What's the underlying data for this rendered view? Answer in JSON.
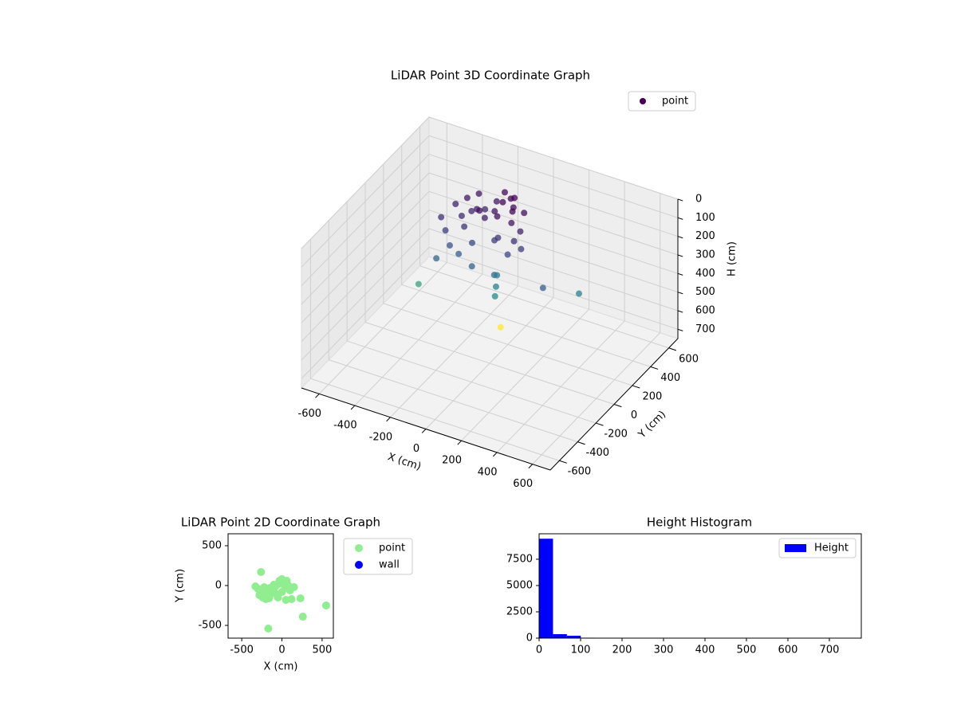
{
  "chart_data": [
    {
      "type": "scatter3d",
      "title": "LiDAR Point 3D Coordinate Graph",
      "xlabel": "X (cm)",
      "ylabel": "Y (cm)",
      "zlabel": "H (cm)",
      "xlim": [
        -700,
        700
      ],
      "ylim": [
        -700,
        700
      ],
      "zlim": [
        750,
        0
      ],
      "xticks": [
        -600,
        -400,
        -200,
        0,
        200,
        400,
        600
      ],
      "yticks": [
        -600,
        -400,
        -200,
        0,
        200,
        400,
        600
      ],
      "zticks": [
        0,
        100,
        200,
        300,
        400,
        500,
        600,
        700
      ],
      "colormap": "viridis",
      "grid": true,
      "legend": "upper right",
      "series": [
        {
          "name": "point",
          "color": "#440154",
          "x": [
            -350,
            -320,
            -300,
            -280,
            -260,
            -240,
            -220,
            -200,
            -180,
            -160,
            -140,
            -120,
            -100,
            -80,
            -60,
            -40,
            -20,
            0,
            20,
            40,
            60,
            -250,
            -150,
            -50,
            50,
            -300,
            -200,
            -100,
            0,
            100,
            -230,
            -130,
            -30,
            70,
            -10,
            10,
            30,
            -60,
            -400,
            400,
            -95,
            300
          ],
          "y": [
            150,
            250,
            100,
            300,
            200,
            350,
            150,
            250,
            300,
            200,
            350,
            400,
            250,
            300,
            200,
            350,
            300,
            250,
            200,
            300,
            150,
            50,
            100,
            150,
            100,
            0,
            50,
            0,
            50,
            150,
            250,
            200,
            150,
            200,
            100,
            50,
            0,
            350,
            0,
            200,
            305,
            0
          ],
          "z": [
            150,
            120,
            180,
            100,
            140,
            90,
            160,
            110,
            130,
            80,
            100,
            70,
            90,
            60,
            80,
            50,
            70,
            60,
            90,
            80,
            150,
            220,
            200,
            180,
            200,
            280,
            250,
            260,
            300,
            180,
            130,
            110,
            160,
            120,
            330,
            360,
            380,
            60,
            450,
            350,
            740,
            250
          ]
        }
      ]
    },
    {
      "type": "scatter",
      "title": "LiDAR Point 2D Coordinate Graph",
      "xlabel": "X (cm)",
      "ylabel": "Y (cm)",
      "xlim": [
        -670,
        640
      ],
      "ylim": [
        -660,
        650
      ],
      "xticks": [
        -500,
        0,
        500
      ],
      "yticks": [
        -500,
        0,
        500
      ],
      "legend": "outside right",
      "series": [
        {
          "name": "point",
          "color": "lightgreen",
          "x": [
            -330,
            -300,
            -280,
            -260,
            -240,
            -220,
            -200,
            -180,
            -160,
            -140,
            -120,
            -100,
            -80,
            -60,
            -40,
            -20,
            0,
            20,
            40,
            60,
            80,
            100,
            -250,
            -150,
            -50,
            50,
            150,
            -200,
            -100,
            0,
            -260,
            550,
            260,
            -170,
            230,
            50,
            120,
            -30
          ],
          "y": [
            -10,
            -40,
            -120,
            -60,
            -150,
            -20,
            -130,
            -90,
            -160,
            -50,
            -100,
            -40,
            -10,
            -110,
            20,
            50,
            80,
            40,
            -30,
            60,
            0,
            -60,
            -110,
            -30,
            -150,
            10,
            -20,
            -170,
            10,
            -80,
            170,
            -250,
            -390,
            -540,
            -160,
            -180,
            -170,
            60
          ]
        },
        {
          "name": "wall",
          "color": "blue",
          "x": [],
          "y": []
        }
      ]
    },
    {
      "type": "histogram",
      "title": "Height Histogram",
      "name": "Height",
      "color": "blue",
      "bins": [
        0,
        33.5,
        67,
        100.5,
        134,
        167.5,
        201,
        234.5,
        268,
        301.5,
        335,
        368.5,
        402,
        435.5,
        469,
        502.5,
        536,
        569.5,
        603,
        636.5,
        670,
        703.5,
        737,
        770.5
      ],
      "counts": [
        9450,
        380,
        230,
        40,
        20,
        12,
        8,
        6,
        5,
        4,
        3,
        2,
        2,
        1,
        1,
        1,
        1,
        1,
        0,
        0,
        1,
        0,
        1
      ],
      "xlim": [
        0,
        777
      ],
      "ylim": [
        0,
        9920
      ],
      "xticks": [
        0,
        100,
        200,
        300,
        400,
        500,
        600,
        700
      ],
      "yticks": [
        0,
        2500,
        5000,
        7500
      ],
      "legend": "upper right"
    }
  ]
}
